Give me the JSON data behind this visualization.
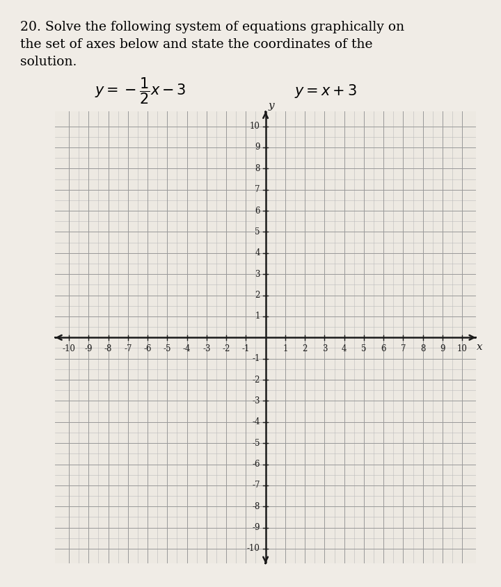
{
  "title_line1": "20. Solve the following system of equations graphically on",
  "title_line2": "the set of axes below and state the coordinates of the",
  "title_line3": "solution.",
  "eq1_latex": "$y = -\\dfrac{1}{2}x - 3$",
  "eq2_latex": "$y = x + 3$",
  "xmin": -10,
  "xmax": 10,
  "ymin": -10,
  "ymax": 10,
  "minor_divisions": 2,
  "bg_color": "#f0ece6",
  "plot_bg_color": "#ede9e2",
  "grid_major_color": "#999999",
  "grid_minor_color": "#bbbbbb",
  "axis_color": "#1a1a1a",
  "tick_label_color": "#1a1a1a",
  "tick_fontsize": 8.5,
  "axis_label_fontsize": 11,
  "title_fontsize": 13.5,
  "eq_fontsize": 15,
  "xlabel": "x",
  "ylabel": "y"
}
